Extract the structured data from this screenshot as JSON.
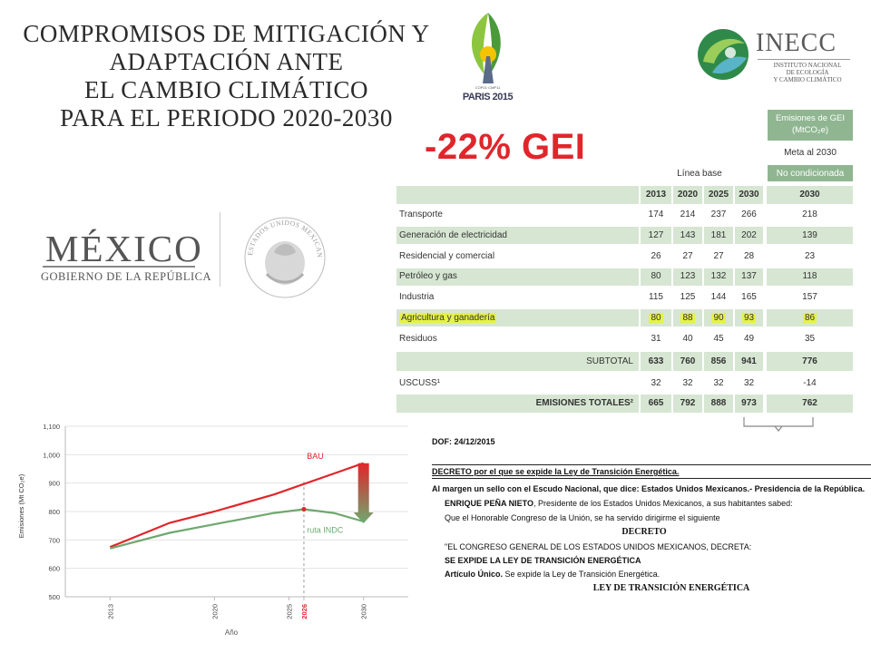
{
  "title": {
    "lines": [
      "COMPROMISOS DE MITIGACIÓN Y",
      "ADAPTACIÓN ANTE",
      "EL CAMBIO CLIMÁTICO",
      "PARA EL PERIODO 2020-2030"
    ]
  },
  "logos": {
    "cop": {
      "small_text": "COP21·CMP11",
      "city": "PARIS 2015",
      "icon": "cop21-leaf-icon"
    },
    "inecc": {
      "name": "INECC",
      "subtitle_lines": [
        "INSTITUTO NACIONAL",
        "DE ECOLOGÍA",
        "Y CAMBIO CLIMÁTICO"
      ],
      "icon": "inecc-leaf-icon"
    },
    "gobierno": {
      "word": "MÉXICO",
      "subtitle": "GOBIERNO DE LA REPÚBLICA",
      "seal_text": "ESTADOS UNIDOS MEXICANOS",
      "icon": "national-seal-icon"
    }
  },
  "headline": "-22% GEI",
  "table": {
    "emissions_header": "Emisiones de GEI (MtCO₂e)",
    "emissions_header_line1": "Emisiones de GEI",
    "emissions_header_line2": "(MtCO₂e)",
    "meta_label": "Meta al 2030",
    "linea_base_label": "Línea base",
    "no_condicionada_label": "No condicionada",
    "years": [
      "2013",
      "2020",
      "2025",
      "2030"
    ],
    "meta_year": "2030",
    "rows": [
      {
        "label": "Transporte",
        "values": [
          "174",
          "214",
          "237",
          "266"
        ],
        "meta": "218"
      },
      {
        "label": "Generación de electricidad",
        "values": [
          "127",
          "143",
          "181",
          "202"
        ],
        "meta": "139"
      },
      {
        "label": "Residencial y comercial",
        "values": [
          "26",
          "27",
          "27",
          "28"
        ],
        "meta": "23"
      },
      {
        "label": "Petróleo y gas",
        "values": [
          "80",
          "123",
          "132",
          "137"
        ],
        "meta": "118"
      },
      {
        "label": "Industria",
        "values": [
          "115",
          "125",
          "144",
          "165"
        ],
        "meta": "157"
      },
      {
        "label": "Agricultura y ganadería",
        "values": [
          "80",
          "88",
          "90",
          "93"
        ],
        "meta": "86"
      },
      {
        "label": "Residuos",
        "values": [
          "31",
          "40",
          "45",
          "49"
        ],
        "meta": "35"
      }
    ],
    "subtotal": {
      "label": "SUBTOTAL",
      "values": [
        "633",
        "760",
        "856",
        "941"
      ],
      "meta": "776"
    },
    "uscuss": {
      "label": "USCUSS¹",
      "values": [
        "32",
        "32",
        "32",
        "32"
      ],
      "meta": "-14"
    },
    "totales": {
      "label": "EMISIONES TOTALES²",
      "values": [
        "665",
        "792",
        "888",
        "973"
      ],
      "meta": "762"
    }
  },
  "chart_data": {
    "type": "line",
    "ylabel": "Emisiones (Mt CO₂e)",
    "xlabel": "Año",
    "ylim": [
      500,
      1100
    ],
    "xlim": [
      2010,
      2033
    ],
    "yticks": [
      "500",
      "600",
      "700",
      "800",
      "900",
      "1,000",
      "1,100"
    ],
    "ytick_values": [
      500,
      600,
      700,
      800,
      900,
      1000,
      1100
    ],
    "xticks": [
      "2013",
      "2020",
      "2025",
      "2026",
      "2030"
    ],
    "xtick_values": [
      2013,
      2020,
      2025,
      2026,
      2030
    ],
    "highlight_year": "2026",
    "grid": true,
    "series": [
      {
        "name": "BAU",
        "color": "#e0262b",
        "x": [
          2013,
          2017,
          2020,
          2024,
          2030
        ],
        "y": [
          675,
          760,
          800,
          860,
          970
        ]
      },
      {
        "name": "ruta INDC",
        "color": "#6fa86f",
        "x": [
          2013,
          2017,
          2020,
          2024,
          2026,
          2028,
          2030
        ],
        "y": [
          670,
          725,
          755,
          795,
          808,
          795,
          765
        ]
      }
    ],
    "peak_marker": {
      "x": 2026,
      "y": 808
    }
  },
  "decree": {
    "dof": "DOF: 24/12/2015",
    "title_bold": "DECRETO",
    "title_rest": " por el que se expide la Ley de Transición Energética.",
    "margin": "Al margen un sello con el Escudo Nacional, que dice: Estados Unidos Mexicanos.- Presidencia de la República.",
    "president_bold": "ENRIQUE PEÑA NIETO",
    "president_rest": ", Presidente de los Estados Unidos Mexicanos, a sus habitantes sabed:",
    "congreso": "Que el Honorable Congreso de la Unión, se ha servido dirigirme el siguiente",
    "decreto_heading": "DECRETO",
    "congreso_general": "\"EL CONGRESO GENERAL DE LOS ESTADOS UNIDOS MEXICANOS, DECRETA:",
    "expide": "SE EXPIDE LA LEY DE TRANSICIÓN ENERGÉTICA",
    "articulo_bold": "Artículo Único.",
    "articulo_rest": " Se expide la Ley de Transición Energética.",
    "ley_heading": "LEY DE TRANSICIÓN ENERGÉTICA"
  },
  "colors": {
    "accent_red": "#e0262b",
    "table_band": "#d6e6d2",
    "header_green": "#8fb691",
    "highlight": "#e6f244",
    "indc_green": "#6fa86f"
  }
}
